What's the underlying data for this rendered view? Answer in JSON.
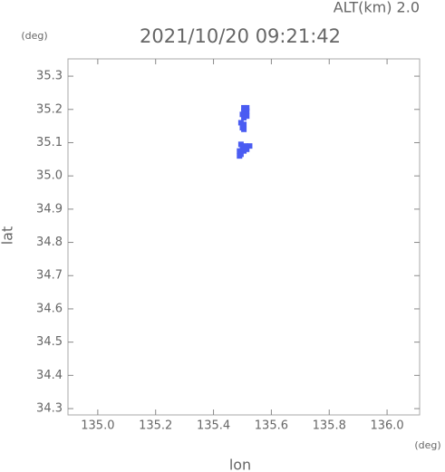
{
  "chart_data": {
    "type": "scatter",
    "title": "2021/10/20 09:21:42",
    "subtitle": "ALT(km) 2.0",
    "x_label": "lon",
    "y_label": "lat",
    "x_unit": "(deg)",
    "y_unit": "(deg)",
    "xlim": [
      134.897,
      136.1125
    ],
    "ylim": [
      34.281,
      35.352
    ],
    "xticks": [
      {
        "value": 135.0,
        "label": "135.0"
      },
      135.2,
      135.4,
      135.6,
      135.8,
      {
        "value": 136.0,
        "label": "136.0"
      }
    ],
    "yticks": [
      35.3,
      35.2,
      35.1,
      {
        "value": 35.0,
        "label": "35.0"
      },
      34.9,
      34.8,
      34.7,
      34.6,
      34.5,
      34.4,
      34.3
    ],
    "series": [
      {
        "color": "#4a5cf2",
        "x": [
          135.505,
          135.515,
          135.505,
          135.515,
          135.5,
          135.51,
          135.515,
          135.505,
          135.495,
          135.505,
          135.5,
          135.505,
          135.495,
          135.51,
          135.525,
          135.5,
          135.49,
          135.505,
          135.515,
          135.495,
          135.49
        ],
        "values": [
          35.205,
          35.205,
          35.195,
          35.195,
          35.185,
          35.185,
          35.18,
          35.175,
          35.16,
          35.155,
          35.145,
          35.14,
          35.095,
          35.09,
          35.09,
          35.08,
          35.075,
          35.075,
          35.08,
          35.065,
          35.06
        ]
      }
    ]
  }
}
